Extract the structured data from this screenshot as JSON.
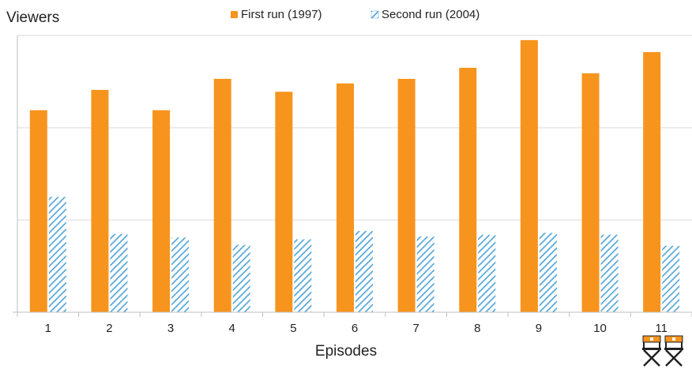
{
  "chart_data": {
    "type": "bar",
    "ylabel": "Viewers",
    "xlabel": "Episodes",
    "categories": [
      "1",
      "2",
      "3",
      "4",
      "5",
      "6",
      "7",
      "8",
      "9",
      "10",
      "11"
    ],
    "series": [
      {
        "name": "First run (1997)",
        "color": "#F7941D",
        "pattern": "solid",
        "values": [
          2.19,
          2.41,
          2.19,
          2.53,
          2.39,
          2.48,
          2.53,
          2.65,
          2.95,
          2.59,
          2.82
        ]
      },
      {
        "name": "Second run (2004)",
        "color": "#4DA3D9",
        "pattern": "diagonal-hatch",
        "values": [
          1.25,
          0.85,
          0.81,
          0.73,
          0.79,
          0.88,
          0.82,
          0.84,
          0.86,
          0.84,
          0.72
        ]
      }
    ],
    "ylim": [
      0,
      3.0
    ],
    "y_gridlines": [
      1,
      2,
      3
    ],
    "y_tick_labels_visible": false,
    "grid": true,
    "legend_position": "top-center"
  },
  "decoration": {
    "icon": "directors-chairs-icon"
  }
}
